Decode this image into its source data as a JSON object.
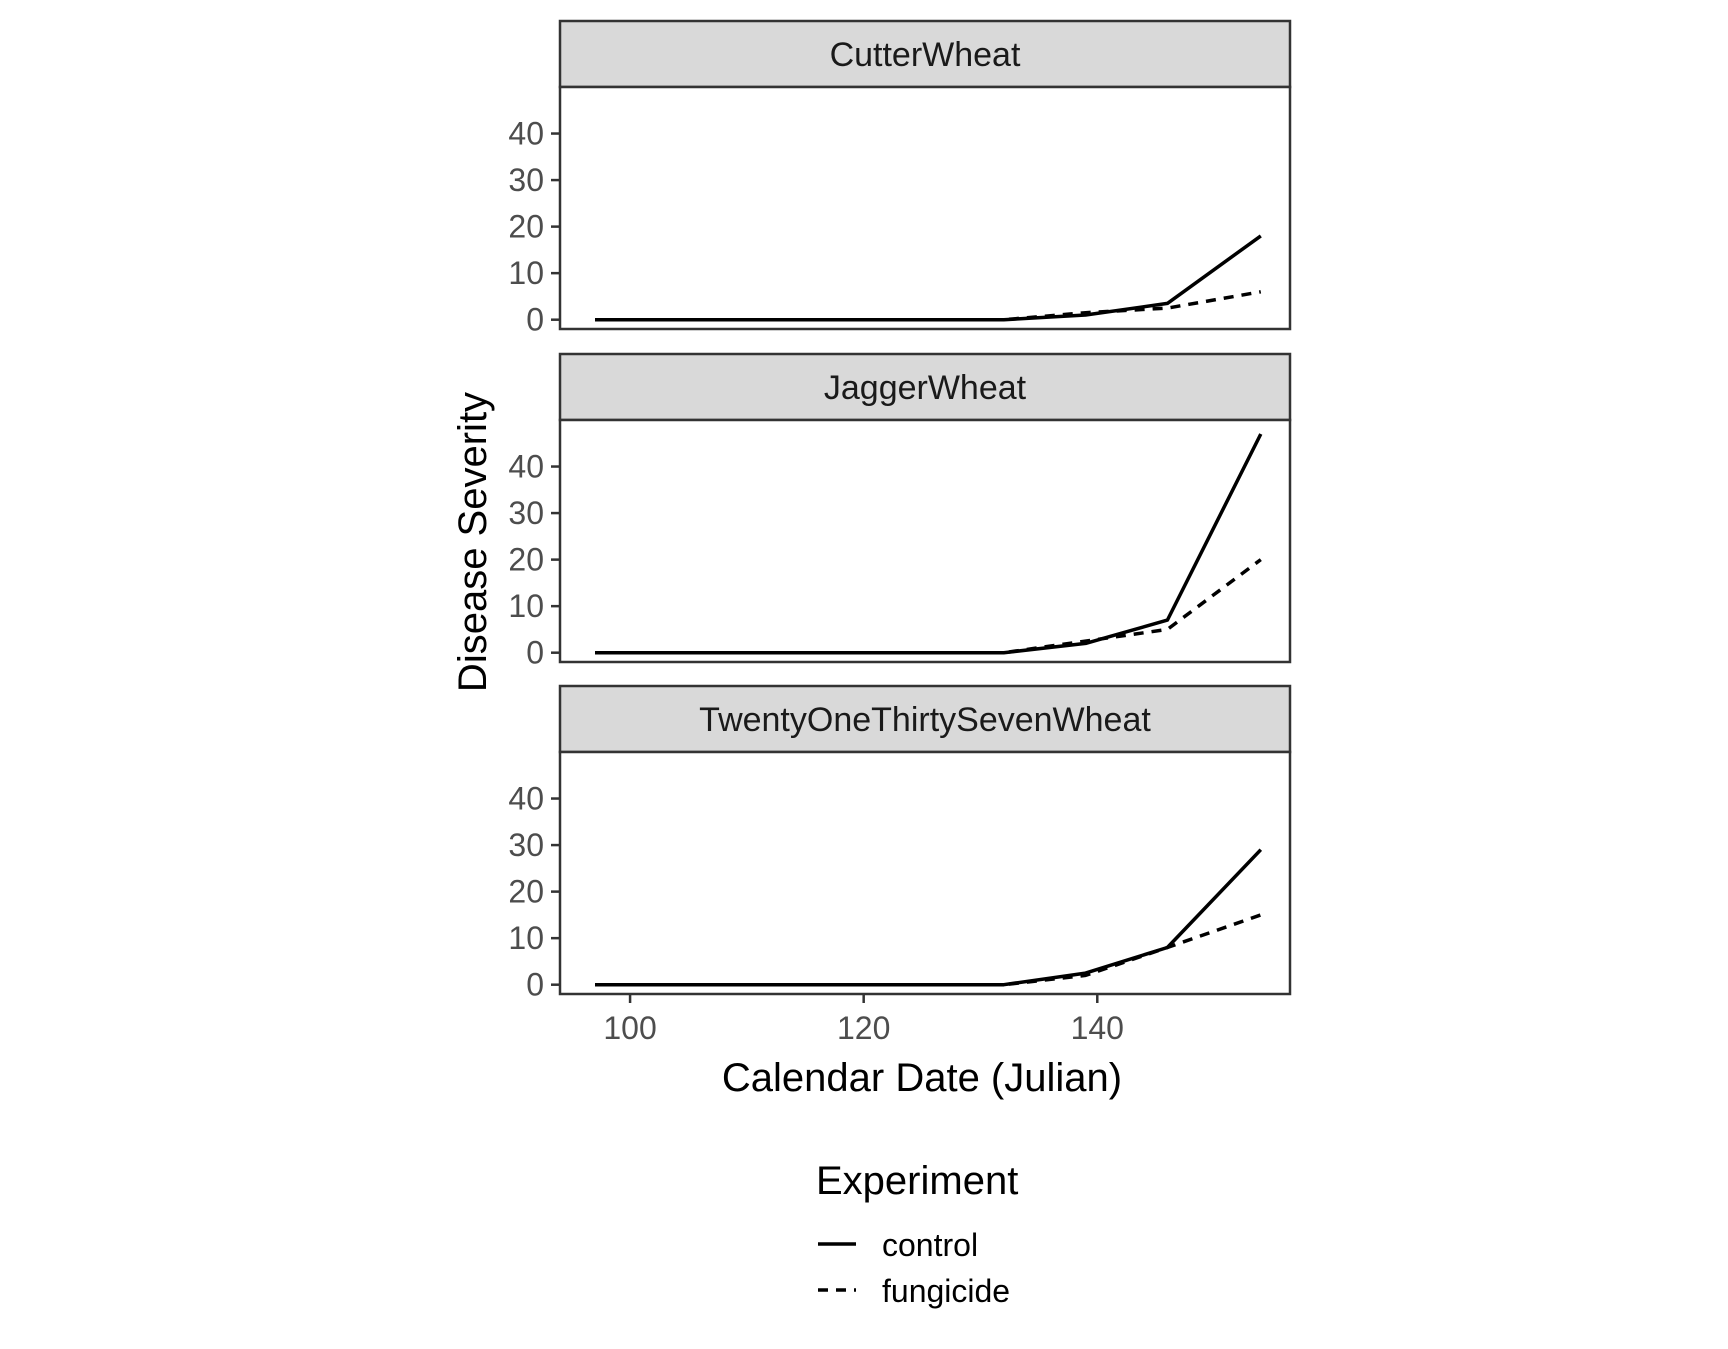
{
  "chart_data": {
    "type": "line",
    "xlabel": "Calendar Date (Julian)",
    "ylabel": "Disease Severity",
    "xlim": [
      94,
      156.5
    ],
    "ylim": [
      -2,
      50
    ],
    "x_ticks": [
      100,
      120,
      140
    ],
    "y_ticks": [
      0,
      10,
      20,
      30,
      40
    ],
    "grid": false,
    "legend": {
      "title": "Experiment",
      "placement": "bottom",
      "entries": [
        {
          "name": "control",
          "linetype": "solid"
        },
        {
          "name": "fungicide",
          "linetype": "dashed"
        }
      ]
    },
    "panels": [
      {
        "title": "CutterWheat",
        "series": [
          {
            "name": "control",
            "linetype": "solid",
            "x": [
              97,
              132,
              139,
              146,
              154
            ],
            "y": [
              0,
              0,
              1,
              3.5,
              18
            ]
          },
          {
            "name": "fungicide",
            "linetype": "dashed",
            "x": [
              97,
              132,
              139,
              146,
              154
            ],
            "y": [
              0,
              0,
              1.5,
              2.5,
              6
            ]
          }
        ]
      },
      {
        "title": "JaggerWheat",
        "series": [
          {
            "name": "control",
            "linetype": "solid",
            "x": [
              97,
              132,
              139,
              146,
              154
            ],
            "y": [
              0,
              0,
              2,
              7,
              47
            ]
          },
          {
            "name": "fungicide",
            "linetype": "dashed",
            "x": [
              97,
              132,
              139,
              146,
              154
            ],
            "y": [
              0,
              0,
              2.5,
              5,
              20
            ]
          }
        ]
      },
      {
        "title": "TwentyOneThirtySevenWheat",
        "series": [
          {
            "name": "control",
            "linetype": "solid",
            "x": [
              97,
              132,
              139,
              146,
              154
            ],
            "y": [
              0,
              0,
              2.5,
              8,
              29
            ]
          },
          {
            "name": "fungicide",
            "linetype": "dashed",
            "x": [
              97,
              132,
              139,
              146,
              154
            ],
            "y": [
              0,
              0,
              2,
              8,
              15
            ]
          }
        ]
      }
    ]
  }
}
